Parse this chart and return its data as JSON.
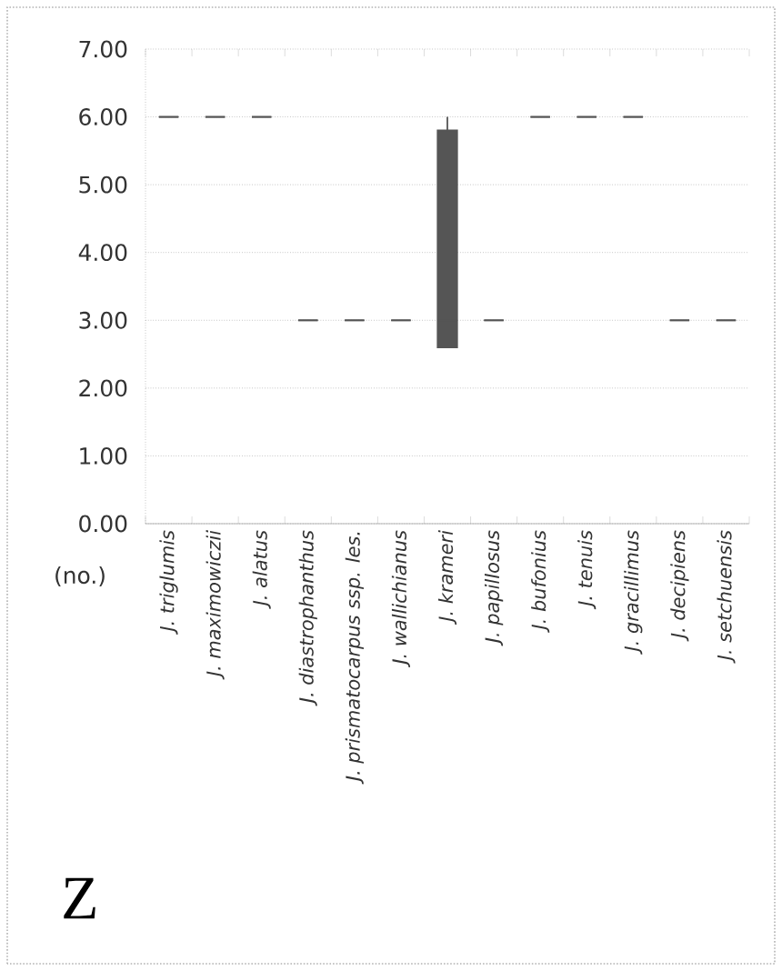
{
  "chart_data": {
    "type": "box",
    "ylabel": "(no.)",
    "annotations": [
      "Z"
    ],
    "categories": [
      "*J. triglumis*",
      "*J. maximowiczii*",
      "*J. alatus*",
      "*J. diastrophanthus*",
      "*J. prismatocarpus ssp. les.*",
      "*J. wallichianus*",
      "*J. krameri*",
      "*J. papillosus*",
      "*J. bufonius*",
      "*J. tenuis*",
      "*J. gracillimus*",
      "*J. decipiens*",
      "*J. setchuensis*"
    ],
    "series": [
      {
        "color": "#555555",
        "boxes": [
          {
            "low": 6,
            "q1": 6,
            "median": 6,
            "q3": 6,
            "high": 6
          },
          {
            "low": 6,
            "q1": 6,
            "median": 6,
            "q3": 6,
            "high": 6
          },
          {
            "low": 6,
            "q1": 6,
            "median": 6,
            "q3": 6,
            "high": 6
          },
          {
            "low": 3,
            "q1": 3,
            "median": 3,
            "q3": 3,
            "high": 3
          },
          {
            "low": 3,
            "q1": 3,
            "median": 3,
            "q3": 3,
            "high": 3
          },
          {
            "low": 3,
            "q1": 3,
            "median": 3,
            "q3": 3,
            "high": 3
          },
          {
            "low": 2.6,
            "q1": 2.6,
            "median": 3,
            "q3": 5.8,
            "high": 6
          },
          {
            "low": 3,
            "q1": 3,
            "median": 3,
            "q3": 3,
            "high": 3
          },
          {
            "low": 6,
            "q1": 6,
            "median": 6,
            "q3": 6,
            "high": 6
          },
          {
            "low": 6,
            "q1": 6,
            "median": 6,
            "q3": 6,
            "high": 6
          },
          {
            "low": 6,
            "q1": 6,
            "median": 6,
            "q3": 6,
            "high": 6
          },
          {
            "low": 3,
            "q1": 3,
            "median": 3,
            "q3": 3,
            "high": 3
          },
          {
            "low": 3,
            "q1": 3,
            "median": 3,
            "q3": 3,
            "high": 3
          }
        ]
      }
    ],
    "ylim": [
      0,
      7
    ],
    "yticks": [
      {
        "value": 0,
        "label": "0.00"
      },
      {
        "value": 1,
        "label": "1.00"
      },
      {
        "value": 2,
        "label": "2.00"
      },
      {
        "value": 3,
        "label": "3.00"
      },
      {
        "value": 4,
        "label": "4.00"
      },
      {
        "value": 5,
        "label": "5.00"
      },
      {
        "value": 6,
        "label": "6.00"
      },
      {
        "value": 7,
        "label": "7.00"
      }
    ],
    "grid": "y"
  }
}
